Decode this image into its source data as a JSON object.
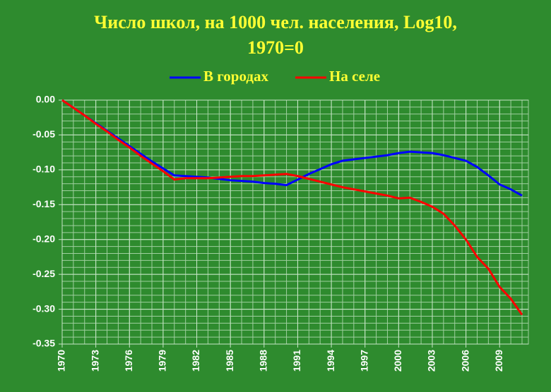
{
  "chart_data": {
    "type": "line",
    "title": "Число школ, на 1000 чел. населения, Log10,",
    "subtitle": "1970=0",
    "x": [
      1970,
      1971,
      1972,
      1973,
      1974,
      1975,
      1976,
      1977,
      1978,
      1979,
      1980,
      1981,
      1982,
      1983,
      1984,
      1985,
      1986,
      1987,
      1988,
      1989,
      1990,
      1991,
      1992,
      1993,
      1994,
      1995,
      1996,
      1997,
      1998,
      1999,
      2000,
      2001,
      2002,
      2003,
      2004,
      2005,
      2006,
      2007,
      2008,
      2009,
      2010,
      2011
    ],
    "series": [
      {
        "name": "В городах",
        "color": "#0000ff",
        "values": [
          0,
          -0.011,
          -0.022,
          -0.033,
          -0.044,
          -0.055,
          -0.066,
          -0.077,
          -0.088,
          -0.098,
          -0.108,
          -0.109,
          -0.11,
          -0.111,
          -0.113,
          -0.115,
          -0.116,
          -0.117,
          -0.119,
          -0.12,
          -0.122,
          -0.114,
          -0.106,
          -0.099,
          -0.092,
          -0.087,
          -0.085,
          -0.083,
          -0.081,
          -0.079,
          -0.076,
          -0.074,
          -0.075,
          -0.076,
          -0.079,
          -0.083,
          -0.087,
          -0.096,
          -0.108,
          -0.121,
          -0.128,
          -0.137
        ]
      },
      {
        "name": "На селе",
        "color": "#ff0000",
        "values": [
          0,
          -0.011,
          -0.022,
          -0.034,
          -0.045,
          -0.057,
          -0.068,
          -0.08,
          -0.091,
          -0.102,
          -0.114,
          -0.112,
          -0.112,
          -0.112,
          -0.111,
          -0.11,
          -0.109,
          -0.109,
          -0.108,
          -0.107,
          -0.106,
          -0.109,
          -0.113,
          -0.117,
          -0.121,
          -0.125,
          -0.128,
          -0.131,
          -0.134,
          -0.137,
          -0.141,
          -0.14,
          -0.146,
          -0.153,
          -0.163,
          -0.18,
          -0.2,
          -0.225,
          -0.242,
          -0.268,
          -0.285,
          -0.308
        ]
      }
    ],
    "xlim": [
      1970,
      2011
    ],
    "xticks": [
      1970,
      1973,
      1976,
      1979,
      1982,
      1985,
      1988,
      1991,
      1994,
      1997,
      2000,
      2003,
      2006,
      2009
    ],
    "ylim": [
      -0.35,
      0
    ],
    "yticks": [
      {
        "value": 0,
        "label": "0.00"
      },
      {
        "value": -0.05,
        "label": "-0.05"
      },
      {
        "value": -0.1,
        "label": "-0.10"
      },
      {
        "value": -0.15,
        "label": "-0.15"
      },
      {
        "value": -0.2,
        "label": "-0.20"
      },
      {
        "value": -0.25,
        "label": "-0.25"
      },
      {
        "value": -0.3,
        "label": "-0.30"
      },
      {
        "value": -0.35,
        "label": "-0.35"
      }
    ],
    "grid": true
  }
}
